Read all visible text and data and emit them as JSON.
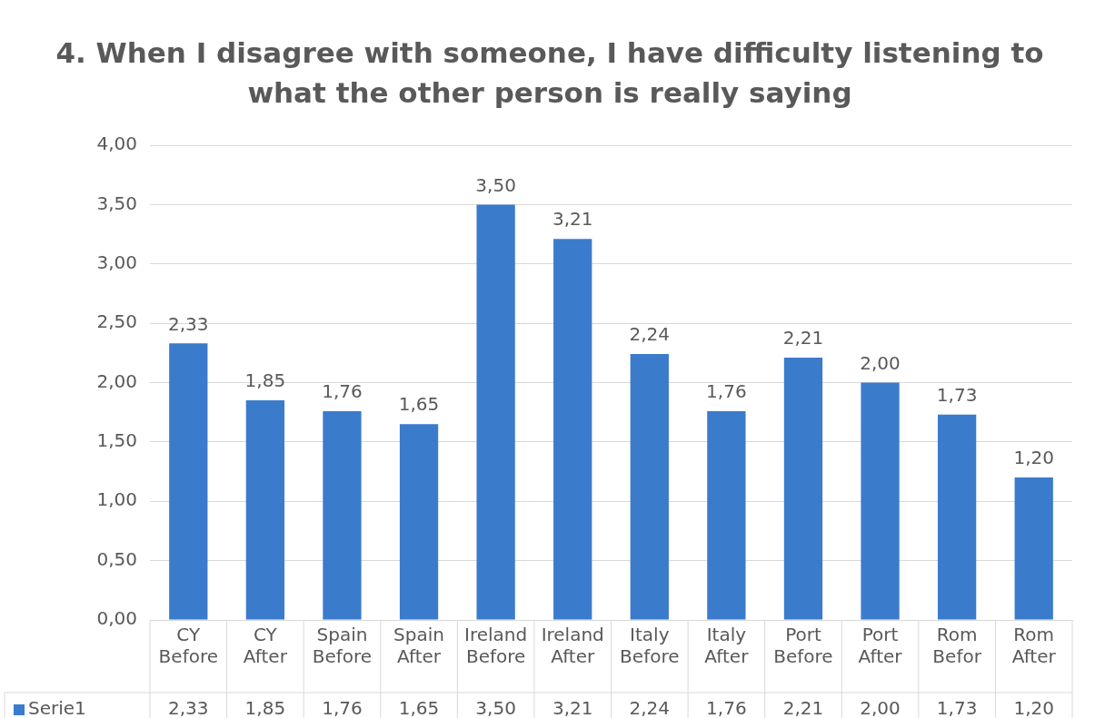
{
  "chart_data": {
    "type": "bar",
    "title": "4. When I disagree with someone, I have difficulty listening to what the other person is really saying",
    "categories": [
      "CY Before",
      "CY After",
      "Spain Before",
      "Spain After",
      "Ireland Before",
      "Ireland After",
      "Italy Before",
      "Italy After",
      "Port Before",
      "Port After",
      "Rom Befor",
      "Rom After"
    ],
    "series": [
      {
        "name": "Serie1",
        "color": "#3b7bcc",
        "values": [
          2.33,
          1.85,
          1.76,
          1.65,
          3.5,
          3.21,
          2.24,
          1.76,
          2.21,
          2.0,
          1.73,
          1.2
        ],
        "value_labels": [
          "2,33",
          "1,85",
          "1,76",
          "1,65",
          "3,50",
          "3,21",
          "2,24",
          "1,76",
          "2,21",
          "2,00",
          "1,73",
          "1,20"
        ]
      }
    ],
    "ylim": [
      0,
      4
    ],
    "yticks": [
      {
        "value": 0,
        "label": "0,00"
      },
      {
        "value": 0.5,
        "label": "0,50"
      },
      {
        "value": 1,
        "label": "1,00"
      },
      {
        "value": 1.5,
        "label": "1,50"
      },
      {
        "value": 2,
        "label": "2,00"
      },
      {
        "value": 2.5,
        "label": "2,50"
      },
      {
        "value": 3,
        "label": "3,00"
      },
      {
        "value": 3.5,
        "label": "3,50"
      },
      {
        "value": 4,
        "label": "4,00"
      }
    ],
    "grid": "y",
    "legend": "bottom left"
  }
}
